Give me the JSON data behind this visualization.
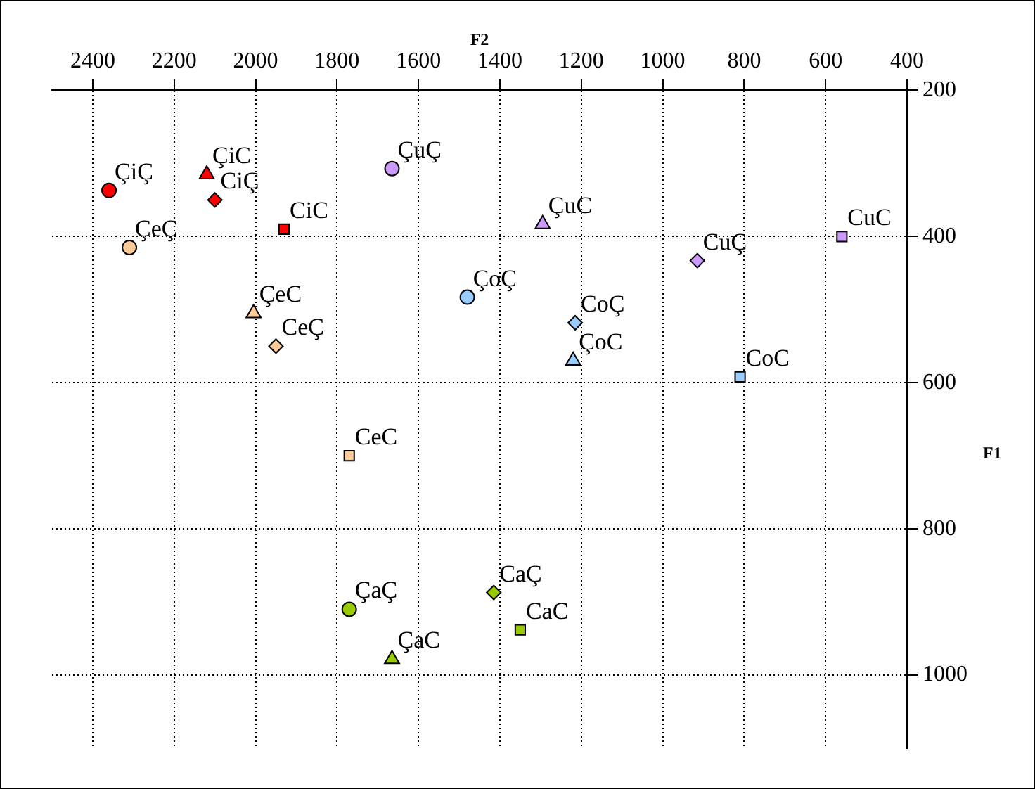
{
  "chart_data": {
    "type": "scatter",
    "xlabel": "F2",
    "ylabel": "F1",
    "xlim": [
      2500,
      400
    ],
    "ylim": [
      1100,
      200
    ],
    "xticks": [
      2400,
      2200,
      2000,
      1800,
      1600,
      1400,
      1200,
      1000,
      800,
      600,
      400
    ],
    "yticks": [
      200,
      400,
      600,
      800,
      1000
    ],
    "grid": true,
    "legend": false,
    "series": [
      {
        "name": "ÇiÇ",
        "color": "#ff0000",
        "marker": "circle",
        "x": [
          2360
        ],
        "values": [
          337
        ]
      },
      {
        "name": "ÇiC",
        "color": "#ff0000",
        "marker": "triangle",
        "x": [
          2120
        ],
        "values": [
          315
        ]
      },
      {
        "name": "CiÇ",
        "color": "#ff0000",
        "marker": "diamond",
        "x": [
          2100
        ],
        "values": [
          350
        ]
      },
      {
        "name": "CiC",
        "color": "#ff0000",
        "marker": "square",
        "x": [
          1930
        ],
        "values": [
          390
        ]
      },
      {
        "name": "ÇeÇ",
        "color": "#ffcc99",
        "marker": "circle",
        "x": [
          2310
        ],
        "values": [
          415
        ]
      },
      {
        "name": "ÇeC",
        "color": "#ffcc99",
        "marker": "triangle",
        "x": [
          2005
        ],
        "values": [
          505
        ]
      },
      {
        "name": "CeÇ",
        "color": "#ffcc99",
        "marker": "diamond",
        "x": [
          1950
        ],
        "values": [
          550
        ]
      },
      {
        "name": "CeC",
        "color": "#ffcc99",
        "marker": "square",
        "x": [
          1770
        ],
        "values": [
          700
        ]
      },
      {
        "name": "ÇuÇ",
        "color": "#cc99ff",
        "marker": "circle",
        "x": [
          1665
        ],
        "values": [
          307
        ]
      },
      {
        "name": "ÇuC",
        "color": "#cc99ff",
        "marker": "triangle",
        "x": [
          1295
        ],
        "values": [
          383
        ]
      },
      {
        "name": "CuÇ",
        "color": "#cc99ff",
        "marker": "diamond",
        "x": [
          915
        ],
        "values": [
          433
        ]
      },
      {
        "name": "CuC",
        "color": "#cc99ff",
        "marker": "square",
        "x": [
          560
        ],
        "values": [
          400
        ]
      },
      {
        "name": "ÇoÇ",
        "color": "#99ccff",
        "marker": "circle",
        "x": [
          1480
        ],
        "values": [
          483
        ]
      },
      {
        "name": "ÇoC",
        "color": "#99ccff",
        "marker": "triangle",
        "x": [
          1220
        ],
        "values": [
          570
        ]
      },
      {
        "name": "CoÇ",
        "color": "#99ccff",
        "marker": "diamond",
        "x": [
          1215
        ],
        "values": [
          518
        ]
      },
      {
        "name": "CoC",
        "color": "#99ccff",
        "marker": "square",
        "x": [
          810
        ],
        "values": [
          592
        ]
      },
      {
        "name": "ÇaÇ",
        "color": "#99cc00",
        "marker": "circle",
        "x": [
          1770
        ],
        "values": [
          910
        ]
      },
      {
        "name": "ÇaC",
        "color": "#99cc00",
        "marker": "triangle",
        "x": [
          1665
        ],
        "values": [
          978
        ]
      },
      {
        "name": "CaÇ",
        "color": "#99cc00",
        "marker": "diamond",
        "x": [
          1415
        ],
        "values": [
          887
        ]
      },
      {
        "name": "CaC",
        "color": "#99cc00",
        "marker": "square",
        "x": [
          1350
        ],
        "values": [
          938
        ]
      }
    ]
  }
}
